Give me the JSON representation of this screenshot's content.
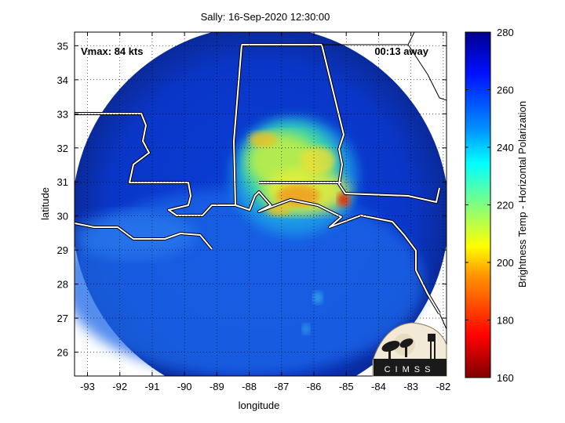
{
  "chart_data": {
    "type": "heatmap",
    "title": "Sally: 16-Sep-2020 12:30:00",
    "xlabel": "longitude",
    "ylabel": "latitude",
    "xlim": [
      -93.4,
      -81.9
    ],
    "ylim": [
      25.3,
      35.4
    ],
    "xticks": [
      -93,
      -92,
      -91,
      -90,
      -89,
      -88,
      -87,
      -86,
      -85,
      -84,
      -83,
      -82
    ],
    "yticks": [
      26,
      27,
      28,
      29,
      30,
      31,
      32,
      33,
      34,
      35
    ],
    "grid": true,
    "annotations": {
      "vmax": "Vmax: 84 kts",
      "time_away": "00:13 away"
    },
    "colorbar": {
      "label": "Brightness Temp - Horizontal Polarization",
      "min": 160,
      "max": 280,
      "ticks": [
        160,
        180,
        200,
        220,
        240,
        260,
        280
      ],
      "colormap": [
        "#7f0000",
        "#ff0000",
        "#ff8000",
        "#ffff00",
        "#80ff80",
        "#00ffff",
        "#0080ff",
        "#0000ff",
        "#00008f"
      ]
    },
    "swath": {
      "center_lon": -87.5,
      "center_lat": 29.8,
      "background_brightness_temp": 268,
      "features": [
        {
          "lon": -87.0,
          "lat": 31.4,
          "brightness_temp": 222
        },
        {
          "lon": -86.6,
          "lat": 30.4,
          "brightness_temp": 210
        },
        {
          "lon": -85.2,
          "lat": 30.5,
          "brightness_temp": 190
        },
        {
          "lon": -86.0,
          "lat": 31.6,
          "brightness_temp": 205
        }
      ]
    },
    "logo": "CIMSS"
  }
}
